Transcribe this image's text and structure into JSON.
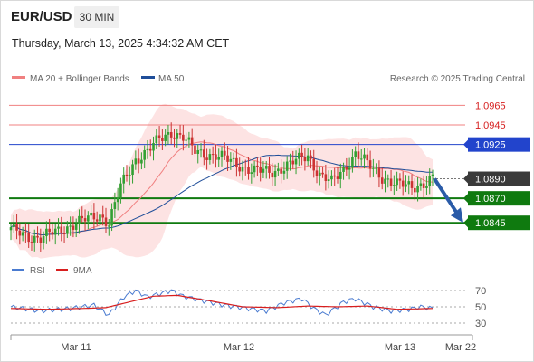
{
  "header": {
    "symbol": "EUR/USD",
    "timeframe": "30 MIN",
    "timestamp": "Thursday, March 13, 2025 4:34:32 AM CET"
  },
  "legend": {
    "bb": {
      "label": "MA 20 + Bollinger Bands",
      "color": "#f08080"
    },
    "ma50": {
      "label": "MA 50",
      "color": "#1f4e99"
    },
    "credit": "Research © 2025 Trading Central"
  },
  "rsi_legend": {
    "rsi": "RSI",
    "ma9": "9MA"
  },
  "colors": {
    "up": "#33a033",
    "down": "#cc3333",
    "support": "#0f7a0f",
    "pivot": "#2244cc",
    "resistance": "#f08080",
    "band": "#fde3e3",
    "arrow": "#2a5ba8",
    "current": "#3a3a3a"
  },
  "chart_data": [
    {
      "type": "line",
      "title": "EUR/USD 30 MIN",
      "x_ticks": [
        "Mar 11",
        "Mar 12",
        "Mar 13",
        "Mar 22"
      ],
      "y_ticks": [
        "1.0965",
        "1.0945",
        "1.0925",
        "1.0890",
        "1.0870",
        "1.0845"
      ],
      "series": [
        {
          "name": "MA 20 + Bollinger Bands"
        },
        {
          "name": "MA 50"
        }
      ],
      "levels": [
        {
          "label": "1.0965",
          "value": 1.0965,
          "kind": "resistance"
        },
        {
          "label": "1.0945",
          "value": 1.0945,
          "kind": "resistance"
        },
        {
          "label": "1.0925",
          "value": 1.0925,
          "kind": "pivot"
        },
        {
          "label": "1.0890",
          "value": 1.089,
          "kind": "current"
        },
        {
          "label": "1.0870",
          "value": 1.087,
          "kind": "support"
        },
        {
          "label": "1.0845",
          "value": 1.0845,
          "kind": "support"
        }
      ],
      "price_path": [
        [
          0,
          1.0838
        ],
        [
          5,
          1.0832
        ],
        [
          10,
          1.0829
        ],
        [
          15,
          1.0836
        ],
        [
          20,
          1.0842
        ],
        [
          25,
          1.0848
        ],
        [
          30,
          1.0853
        ],
        [
          33,
          1.0845
        ],
        [
          37,
          1.0882
        ],
        [
          42,
          1.091
        ],
        [
          46,
          1.0918
        ],
        [
          50,
          1.093
        ],
        [
          54,
          1.0938
        ],
        [
          58,
          1.0932
        ],
        [
          62,
          1.0918
        ],
        [
          70,
          1.0913
        ],
        [
          76,
          1.0905
        ],
        [
          82,
          1.0898
        ],
        [
          88,
          1.0897
        ],
        [
          94,
          1.0905
        ],
        [
          100,
          1.0914
        ],
        [
          104,
          1.0894
        ],
        [
          108,
          1.0886
        ],
        [
          112,
          1.09
        ],
        [
          116,
          1.0916
        ],
        [
          120,
          1.0905
        ],
        [
          125,
          1.0892
        ],
        [
          130,
          1.0884
        ],
        [
          135,
          1.0882
        ],
        [
          140,
          1.0886
        ],
        [
          142,
          1.089
        ]
      ],
      "projection": {
        "from": 1.089,
        "to": 1.0845
      },
      "ylim": [
        1.0823,
        1.0982
      ]
    },
    {
      "type": "line",
      "title": "RSI",
      "series": [
        {
          "name": "RSI"
        },
        {
          "name": "9MA"
        }
      ],
      "y_ticks": [
        "70",
        "50",
        "30"
      ],
      "ylim": [
        20,
        80
      ],
      "rsi_path": [
        [
          0,
          50
        ],
        [
          10,
          45
        ],
        [
          20,
          48
        ],
        [
          28,
          52
        ],
        [
          33,
          40
        ],
        [
          38,
          62
        ],
        [
          42,
          70
        ],
        [
          46,
          62
        ],
        [
          50,
          66
        ],
        [
          54,
          70
        ],
        [
          58,
          63
        ],
        [
          64,
          58
        ],
        [
          72,
          52
        ],
        [
          80,
          48
        ],
        [
          86,
          45
        ],
        [
          92,
          55
        ],
        [
          98,
          60
        ],
        [
          102,
          48
        ],
        [
          106,
          40
        ],
        [
          112,
          56
        ],
        [
          116,
          60
        ],
        [
          122,
          50
        ],
        [
          128,
          45
        ],
        [
          134,
          47
        ],
        [
          138,
          50
        ],
        [
          142,
          48
        ]
      ],
      "ma9_path": [
        [
          0,
          48
        ],
        [
          12,
          47
        ],
        [
          24,
          48
        ],
        [
          32,
          49
        ],
        [
          40,
          56
        ],
        [
          48,
          63
        ],
        [
          56,
          64
        ],
        [
          66,
          58
        ],
        [
          78,
          50
        ],
        [
          90,
          49
        ],
        [
          100,
          51
        ],
        [
          110,
          50
        ],
        [
          120,
          51
        ],
        [
          130,
          47
        ],
        [
          142,
          48
        ]
      ]
    }
  ]
}
